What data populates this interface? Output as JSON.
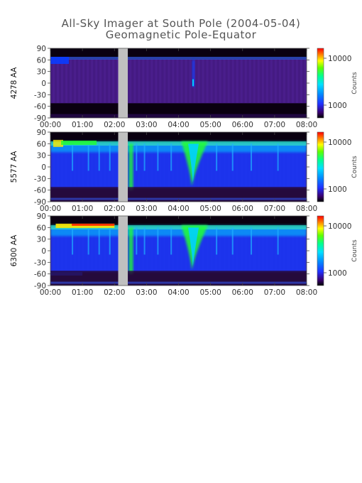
{
  "title": "All-Sky Imager at South Pole (2004-05-04)",
  "subtitle": "Geomagnetic Pole-Equator",
  "chart_data": [
    {
      "type": "heatmap",
      "ylabel": "4278 AA",
      "y_ticks": [
        "90",
        "60",
        "30",
        "0",
        "-30",
        "-60",
        "-90"
      ],
      "x_ticks": [
        "00:00",
        "01:00",
        "02:00",
        "03:00",
        "04:00",
        "05:00",
        "06:00",
        "07:00",
        "08:00"
      ],
      "xlim": [
        "00:00",
        "08:00"
      ],
      "ylim": [
        -90,
        90
      ],
      "data_gap": [
        "02:07",
        "02:25"
      ],
      "colorbar": {
        "label": "Counts",
        "ticks": [
          "10000",
          "1000"
        ],
        "scale": "log"
      },
      "features": [
        {
          "time": "04:27",
          "note": "narrow bright streak near 0 deg"
        }
      ]
    },
    {
      "type": "heatmap",
      "ylabel": "5577 AA",
      "y_ticks": [
        "90",
        "60",
        "30",
        "0",
        "-30",
        "-60",
        "-90"
      ],
      "x_ticks": [
        "00:00",
        "01:00",
        "02:00",
        "03:00",
        "04:00",
        "05:00",
        "06:00",
        "07:00",
        "08:00"
      ],
      "xlim": [
        "00:00",
        "08:00"
      ],
      "ylim": [
        -90,
        90
      ],
      "data_gap": [
        "02:07",
        "02:25"
      ],
      "colorbar": {
        "label": "Counts",
        "ticks": [
          "10000",
          "1000"
        ],
        "scale": "log"
      },
      "features": [
        {
          "time": "02:40",
          "note": "bright event down to -60"
        },
        {
          "time": "04:25",
          "note": "strong auroral intensification"
        }
      ]
    },
    {
      "type": "heatmap",
      "ylabel": "6300 AA",
      "y_ticks": [
        "90",
        "60",
        "30",
        "0",
        "-30",
        "-60",
        "-90"
      ],
      "x_ticks": [
        "00:00",
        "01:00",
        "02:00",
        "03:00",
        "04:00",
        "05:00",
        "06:00",
        "07:00",
        "08:00"
      ],
      "xlim": [
        "00:00",
        "08:00"
      ],
      "ylim": [
        -90,
        90
      ],
      "data_gap": [
        "02:07",
        "02:25"
      ],
      "colorbar": {
        "label": "Counts",
        "ticks": [
          "10000",
          "1000"
        ],
        "scale": "log"
      },
      "features": [
        {
          "time": "00:45",
          "note": "bright band near 65 deg"
        },
        {
          "time": "04:25",
          "note": "strong auroral intensification"
        }
      ]
    }
  ],
  "colors": {
    "background_dark": "#0a0010",
    "background_purple": "#4a1e8c",
    "gap": "#c0c0c0",
    "blue": "#0a3cff",
    "cyan": "#00d0ff",
    "green": "#20ff30",
    "yellow": "#ffe800",
    "red": "#ff2000"
  }
}
